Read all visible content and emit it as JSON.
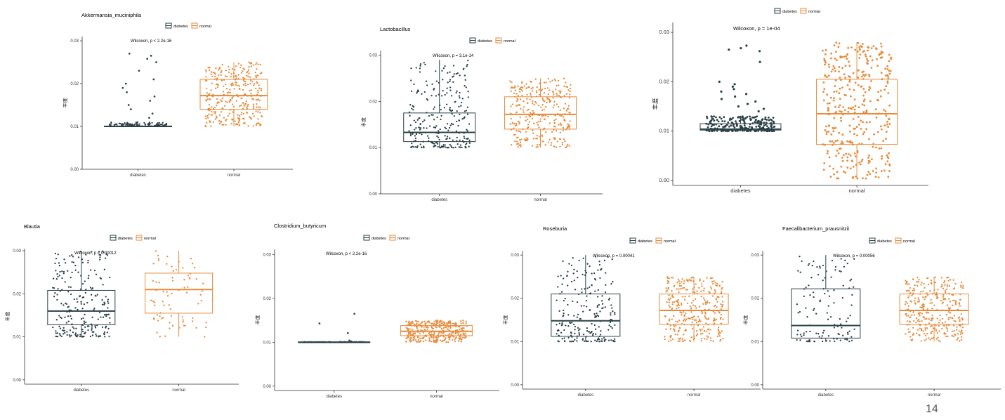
{
  "page_number": "14",
  "colors": {
    "diabetes": "#2b4147",
    "normal": "#e88a3a",
    "axis": "#333333"
  },
  "legend": [
    "diabetes",
    "normal"
  ],
  "chart_data": [
    {
      "type": "box",
      "title": "Akkermansia_muciniphila",
      "annotation": "Wilcoxon, p < 2.2e-16",
      "ylabel": "丰度",
      "ylim": [
        0.0,
        0.031
      ],
      "yticks": [
        "0.00",
        "0.01",
        "0.02",
        "0.03"
      ],
      "grid": false,
      "legend_position": "top",
      "categories": [
        "diabetes",
        "normal"
      ],
      "groups": [
        {
          "name": "diabetes",
          "q1": 0.01,
          "median": 0.01,
          "q3": 0.0101,
          "whisker_low": 0.01,
          "whisker_high": 0.0101,
          "n_points": 120,
          "spread_low": 0.01,
          "spread_high": 0.011,
          "outliers": [
            0.027,
            0.0265,
            0.0258,
            0.025,
            0.023,
            0.021,
            0.02,
            0.019,
            0.018,
            0.017,
            0.016,
            0.015,
            0.014,
            0.013,
            0.012
          ]
        },
        {
          "name": "normal",
          "q1": 0.014,
          "median": 0.0172,
          "q3": 0.021,
          "whisker_low": 0.01,
          "whisker_high": 0.025,
          "n_points": 320,
          "spread_low": 0.01,
          "spread_high": 0.025,
          "outliers": []
        }
      ]
    },
    {
      "type": "box",
      "title": "Lactobacillus",
      "annotation": "Wilcoxon, p = 3.1e-14",
      "ylabel": "丰度",
      "ylim": [
        0.0,
        0.031
      ],
      "yticks": [
        "0.00",
        "0.01",
        "0.02",
        "0.03"
      ],
      "grid": false,
      "legend_position": "top",
      "categories": [
        "diabetes",
        "normal"
      ],
      "groups": [
        {
          "name": "diabetes",
          "q1": 0.0113,
          "median": 0.0133,
          "q3": 0.0175,
          "whisker_low": 0.01,
          "whisker_high": 0.029,
          "n_points": 260,
          "spread_low": 0.01,
          "spread_high": 0.029,
          "outliers": []
        },
        {
          "name": "normal",
          "q1": 0.014,
          "median": 0.0172,
          "q3": 0.021,
          "whisker_low": 0.01,
          "whisker_high": 0.025,
          "n_points": 320,
          "spread_low": 0.01,
          "spread_high": 0.025,
          "outliers": []
        }
      ]
    },
    {
      "type": "box",
      "title": "",
      "annotation": "Wilcoxon, p = 1e-04",
      "ylabel": "丰度",
      "ylim": [
        -0.001,
        0.032
      ],
      "yticks": [
        "0.00",
        "0.01",
        "0.02",
        "0.03"
      ],
      "grid": false,
      "legend_position": "top",
      "categories": [
        "diabetes",
        "normal"
      ],
      "groups": [
        {
          "name": "diabetes",
          "q1": 0.0102,
          "median": 0.0104,
          "q3": 0.0115,
          "whisker_low": 0.01,
          "whisker_high": 0.013,
          "n_points": 240,
          "spread_low": 0.01,
          "spread_high": 0.013,
          "outliers": [
            0.0273,
            0.0268,
            0.0265,
            0.0262,
            0.024,
            0.02,
            0.0195,
            0.019,
            0.0185,
            0.018,
            0.0175,
            0.017,
            0.0165,
            0.016,
            0.0155,
            0.015,
            0.0145,
            0.014
          ]
        },
        {
          "name": "normal",
          "q1": 0.0073,
          "median": 0.0135,
          "q3": 0.0205,
          "whisker_low": 0.0003,
          "whisker_high": 0.028,
          "n_points": 360,
          "spread_low": 0.0003,
          "spread_high": 0.028,
          "outliers": []
        }
      ]
    },
    {
      "type": "box",
      "title": "Blautia",
      "annotation": "Wilcoxon, p = 0.00012",
      "ylabel": "丰度",
      "ylim": [
        -0.001,
        0.0305
      ],
      "yticks": [
        "0.00",
        "0.01",
        "0.02",
        "0.03"
      ],
      "grid": false,
      "legend_position": "top",
      "categories": [
        "diabetes",
        "normal"
      ],
      "groups": [
        {
          "name": "diabetes",
          "q1": 0.0128,
          "median": 0.016,
          "q3": 0.0208,
          "whisker_low": 0.01,
          "whisker_high": 0.03,
          "n_points": 230,
          "spread_low": 0.01,
          "spread_high": 0.03,
          "outliers": []
        },
        {
          "name": "normal",
          "q1": 0.0155,
          "median": 0.021,
          "q3": 0.0248,
          "whisker_low": 0.01,
          "whisker_high": 0.03,
          "n_points": 75,
          "spread_low": 0.01,
          "spread_high": 0.03,
          "outliers": []
        }
      ]
    },
    {
      "type": "box",
      "title": "Clostridium_butyricum",
      "annotation": "Wilcoxon, p < 2.2e-16",
      "ylabel": "丰度",
      "ylim": [
        -0.001,
        0.0312
      ],
      "yticks": [
        "0.00",
        "0.01",
        "0.02",
        "0.03"
      ],
      "grid": false,
      "legend_position": "top",
      "categories": [
        "diabetes",
        "normal"
      ],
      "groups": [
        {
          "name": "diabetes",
          "q1": 0.01,
          "median": 0.01,
          "q3": 0.0101,
          "whisker_low": 0.01,
          "whisker_high": 0.0101,
          "n_points": 80,
          "spread_low": 0.01,
          "spread_high": 0.0101,
          "outliers": [
            0.0165,
            0.0143,
            0.0121,
            0.0104,
            0.0102
          ]
        },
        {
          "name": "normal",
          "q1": 0.0115,
          "median": 0.0125,
          "q3": 0.0138,
          "whisker_low": 0.01,
          "whisker_high": 0.015,
          "n_points": 320,
          "spread_low": 0.01,
          "spread_high": 0.015,
          "outliers": []
        }
      ]
    },
    {
      "type": "box",
      "title": "Roseburia",
      "annotation": "Wilcoxon, p = 0.00041",
      "ylabel": "丰度",
      "ylim": [
        -0.001,
        0.031
      ],
      "yticks": [
        "0.00",
        "0.01",
        "0.02",
        "0.03"
      ],
      "grid": false,
      "legend_position": "top",
      "categories": [
        "diabetes",
        "normal"
      ],
      "groups": [
        {
          "name": "diabetes",
          "q1": 0.0112,
          "median": 0.0148,
          "q3": 0.021,
          "whisker_low": 0.01,
          "whisker_high": 0.03,
          "n_points": 220,
          "spread_low": 0.01,
          "spread_high": 0.03,
          "outliers": []
        },
        {
          "name": "normal",
          "q1": 0.014,
          "median": 0.0172,
          "q3": 0.021,
          "whisker_low": 0.01,
          "whisker_high": 0.025,
          "n_points": 320,
          "spread_low": 0.01,
          "spread_high": 0.025,
          "outliers": []
        }
      ]
    },
    {
      "type": "box",
      "title": "Faecalibacterium_prausnitzii",
      "annotation": "Wilcoxon, p = 0.00056",
      "ylabel": "丰度",
      "ylim": [
        -0.001,
        0.031
      ],
      "yticks": [
        "0.00",
        "0.01",
        "0.02",
        "0.03"
      ],
      "grid": false,
      "legend_position": "top",
      "categories": [
        "diabetes",
        "normal"
      ],
      "groups": [
        {
          "name": "diabetes",
          "q1": 0.0108,
          "median": 0.0137,
          "q3": 0.0222,
          "whisker_low": 0.01,
          "whisker_high": 0.03,
          "n_points": 120,
          "spread_low": 0.01,
          "spread_high": 0.03,
          "outliers": []
        },
        {
          "name": "normal",
          "q1": 0.014,
          "median": 0.0172,
          "q3": 0.021,
          "whisker_low": 0.01,
          "whisker_high": 0.025,
          "n_points": 320,
          "spread_low": 0.01,
          "spread_high": 0.025,
          "outliers": []
        }
      ]
    }
  ]
}
